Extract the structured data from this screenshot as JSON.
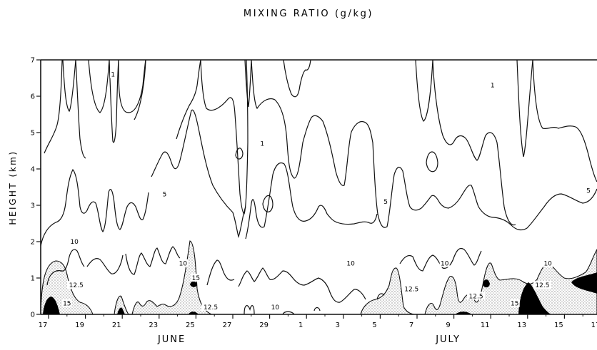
{
  "chart_data": {
    "type": "contour",
    "title": "MIXING RATIO (g/kg)",
    "ylabel": "HEIGHT (km)",
    "xlabel": "",
    "ylim": [
      0,
      7
    ],
    "y_ticks": [
      "0",
      "1",
      "2",
      "3",
      "4",
      "5",
      "6",
      "7"
    ],
    "x_ticks": [
      "17",
      "19",
      "21",
      "23",
      "25",
      "27",
      "29",
      "1",
      "3",
      "5",
      "7",
      "9",
      "11",
      "13",
      "15",
      "17"
    ],
    "months": [
      {
        "name": "JUNE",
        "between_ticks": [
          2,
          5
        ]
      },
      {
        "name": "JULY",
        "between_ticks": [
          10,
          12
        ]
      }
    ],
    "contour_levels": [
      "1",
      "5",
      "10",
      "12.5",
      "15"
    ],
    "shading": {
      "stippled": "12.5 to 15 g/kg",
      "black": "above 15 g/kg"
    },
    "contour_labels": [
      {
        "text": "1",
        "day": 3.5,
        "km": 6.6
      },
      {
        "text": "1",
        "day": 11.6,
        "km": 4.7
      },
      {
        "text": "1",
        "day": 24.1,
        "km": 6.3
      },
      {
        "text": "1",
        "day": 32.1,
        "km": 6.3
      },
      {
        "text": "5",
        "day": 6.3,
        "km": 3.3
      },
      {
        "text": "5",
        "day": 18.3,
        "km": 3.1
      },
      {
        "text": "5",
        "day": 29.3,
        "km": 3.4
      },
      {
        "text": "10",
        "day": 1.4,
        "km": 2.0
      },
      {
        "text": "10",
        "day": 7.3,
        "km": 1.4
      },
      {
        "text": "10",
        "day": 16.4,
        "km": 1.4
      },
      {
        "text": "10",
        "day": 21.5,
        "km": 1.4
      },
      {
        "text": "10",
        "day": 27.1,
        "km": 1.4
      },
      {
        "text": "10",
        "day": 12.3,
        "km": 0.2
      },
      {
        "text": "12.5",
        "day": 1.5,
        "km": 0.8
      },
      {
        "text": "12.5",
        "day": 8.8,
        "km": 0.2
      },
      {
        "text": "12.5",
        "day": 19.7,
        "km": 0.7
      },
      {
        "text": "12.5",
        "day": 23.2,
        "km": 0.5
      },
      {
        "text": "12.5",
        "day": 26.8,
        "km": 0.8
      },
      {
        "text": "15",
        "day": 1.0,
        "km": 0.3
      },
      {
        "text": "15",
        "day": 8.0,
        "km": 1.0
      },
      {
        "text": "15",
        "day": 25.3,
        "km": 0.3
      }
    ],
    "grid": false,
    "legend": "none"
  }
}
